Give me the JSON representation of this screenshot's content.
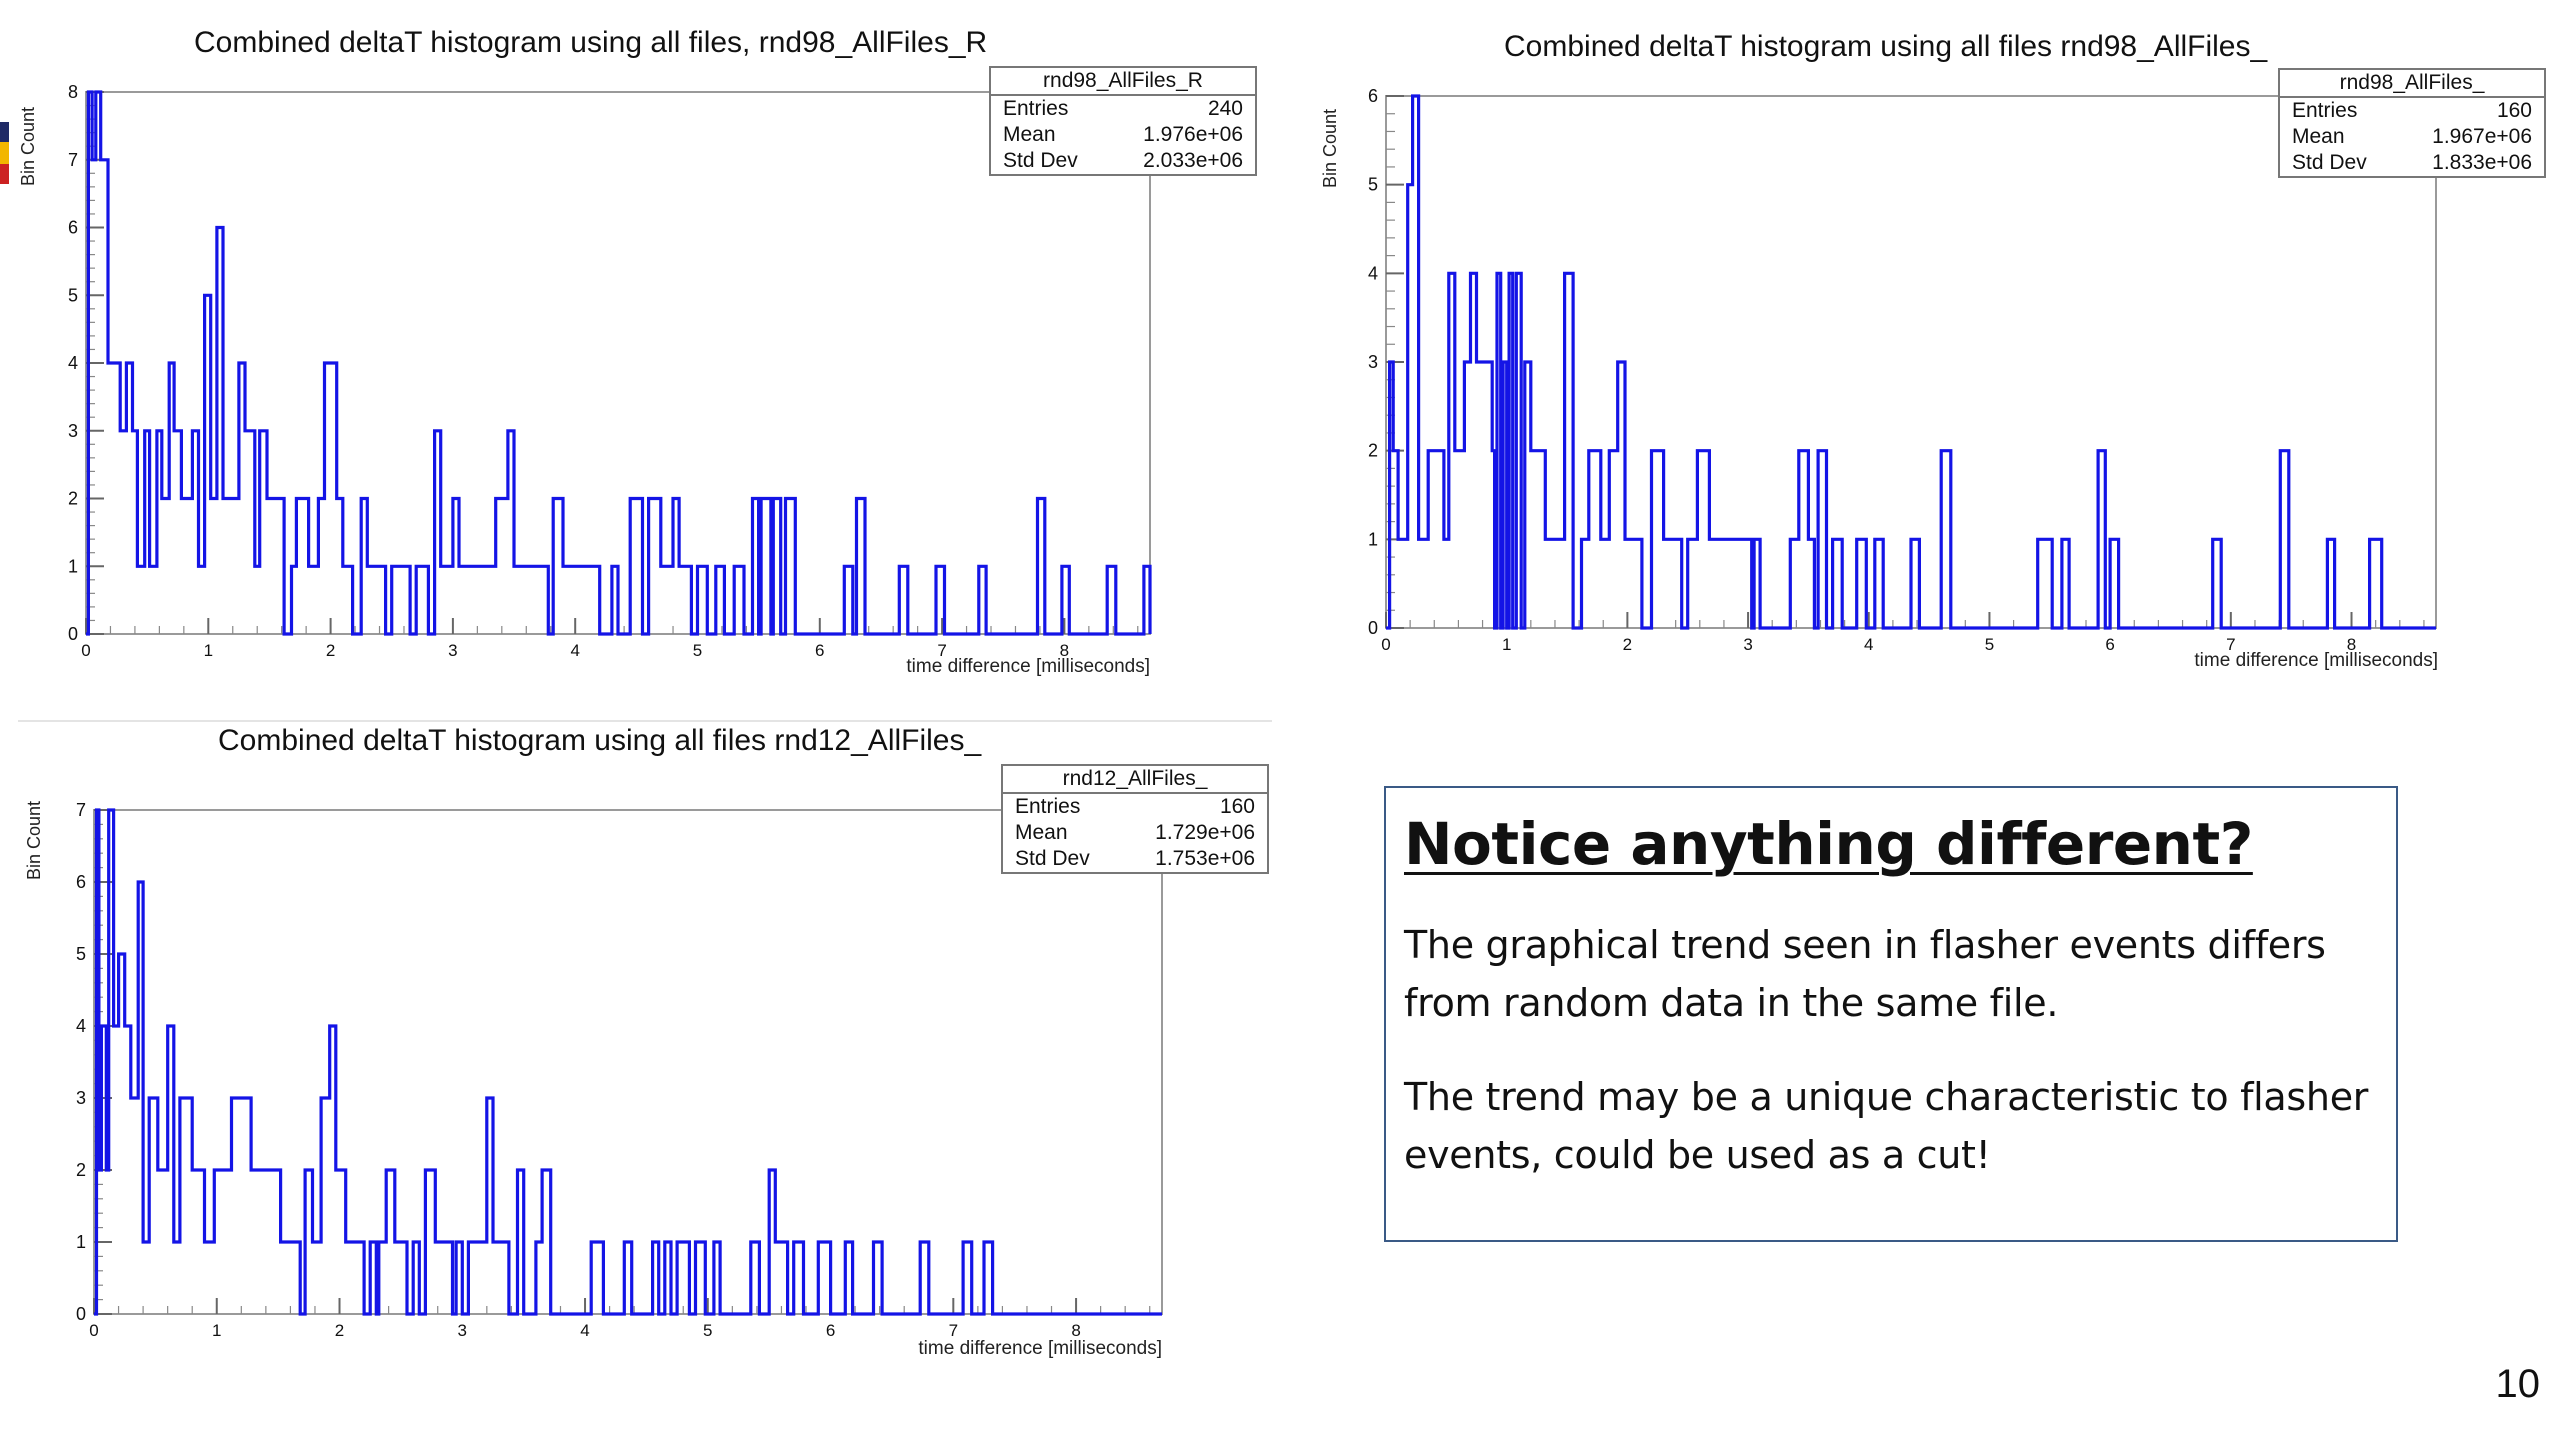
{
  "slide": {
    "page_number": "10"
  },
  "note": {
    "heading": "Notice anything different?",
    "paragraph1": "The graphical trend seen in flasher events differs from random data in the same file.",
    "paragraph2": "The trend may be a unique characteristic to flasher events, could be used as a cut!"
  },
  "colors": {
    "histogram": "#1414e6",
    "logo_top": "#1f2a66",
    "logo_mid": "#f2b600",
    "logo_bot": "#cc2222"
  },
  "chart_data": [
    {
      "type": "histogram-step",
      "title": "Combined deltaT histogram using all files, rnd98_AllFiles_R",
      "xlabel": "time difference [milliseconds]",
      "ylabel": "Bin Count",
      "xlim": [
        0,
        8.7
      ],
      "ylim": [
        0,
        8
      ],
      "x_ticks": [
        0,
        1,
        2,
        3,
        4,
        5,
        6,
        7,
        8
      ],
      "y_ticks": [
        0,
        1,
        2,
        3,
        4,
        5,
        6,
        7,
        8
      ],
      "stats": {
        "name": "rnd98_AllFiles_R",
        "Entries": "240",
        "Mean": "1.976e+06",
        "Std Dev": "2.033e+06"
      },
      "points": [
        [
          0,
          0
        ],
        [
          0.02,
          8
        ],
        [
          0.05,
          7
        ],
        [
          0.08,
          8
        ],
        [
          0.12,
          7
        ],
        [
          0.18,
          4
        ],
        [
          0.28,
          3
        ],
        [
          0.33,
          4
        ],
        [
          0.38,
          3
        ],
        [
          0.42,
          1
        ],
        [
          0.48,
          3
        ],
        [
          0.52,
          1
        ],
        [
          0.58,
          3
        ],
        [
          0.62,
          2
        ],
        [
          0.68,
          4
        ],
        [
          0.72,
          3
        ],
        [
          0.78,
          2
        ],
        [
          0.82,
          2
        ],
        [
          0.87,
          3
        ],
        [
          0.92,
          1
        ],
        [
          0.97,
          5
        ],
        [
          1.02,
          2
        ],
        [
          1.07,
          6
        ],
        [
          1.12,
          2
        ],
        [
          1.2,
          2
        ],
        [
          1.25,
          4
        ],
        [
          1.3,
          3
        ],
        [
          1.38,
          1
        ],
        [
          1.42,
          3
        ],
        [
          1.48,
          2
        ],
        [
          1.58,
          2
        ],
        [
          1.62,
          0
        ],
        [
          1.68,
          1
        ],
        [
          1.72,
          2
        ],
        [
          1.82,
          1
        ],
        [
          1.9,
          2
        ],
        [
          1.95,
          4
        ],
        [
          2.05,
          2
        ],
        [
          2.1,
          1
        ],
        [
          2.18,
          0
        ],
        [
          2.25,
          2
        ],
        [
          2.3,
          1
        ],
        [
          2.4,
          1
        ],
        [
          2.45,
          0
        ],
        [
          2.5,
          1
        ],
        [
          2.6,
          1
        ],
        [
          2.65,
          0
        ],
        [
          2.7,
          1
        ],
        [
          2.8,
          0
        ],
        [
          2.85,
          3
        ],
        [
          2.9,
          1
        ],
        [
          3.0,
          2
        ],
        [
          3.05,
          1
        ],
        [
          3.15,
          1
        ],
        [
          3.2,
          1
        ],
        [
          3.35,
          2
        ],
        [
          3.45,
          3
        ],
        [
          3.5,
          1
        ],
        [
          3.6,
          1
        ],
        [
          3.7,
          1
        ],
        [
          3.78,
          0
        ],
        [
          3.82,
          2
        ],
        [
          3.9,
          1
        ],
        [
          4.0,
          1
        ],
        [
          4.1,
          1
        ],
        [
          4.2,
          0
        ],
        [
          4.3,
          1
        ],
        [
          4.35,
          0
        ],
        [
          4.45,
          2
        ],
        [
          4.55,
          0
        ],
        [
          4.6,
          2
        ],
        [
          4.7,
          1
        ],
        [
          4.8,
          2
        ],
        [
          4.85,
          1
        ],
        [
          4.95,
          0
        ],
        [
          5.0,
          1
        ],
        [
          5.08,
          0
        ],
        [
          5.15,
          1
        ],
        [
          5.22,
          0
        ],
        [
          5.3,
          1
        ],
        [
          5.38,
          0
        ],
        [
          5.45,
          2
        ],
        [
          5.5,
          0
        ],
        [
          5.52,
          2
        ],
        [
          5.6,
          0
        ],
        [
          5.62,
          2
        ],
        [
          5.68,
          0
        ],
        [
          5.72,
          2
        ],
        [
          5.8,
          0
        ],
        [
          6.2,
          1
        ],
        [
          6.27,
          0
        ],
        [
          6.3,
          2
        ],
        [
          6.37,
          0
        ],
        [
          6.65,
          1
        ],
        [
          6.72,
          0
        ],
        [
          6.95,
          1
        ],
        [
          7.02,
          0
        ],
        [
          7.3,
          1
        ],
        [
          7.36,
          0
        ],
        [
          7.78,
          2
        ],
        [
          7.84,
          0
        ],
        [
          7.98,
          1
        ],
        [
          8.04,
          0
        ],
        [
          8.35,
          1
        ],
        [
          8.42,
          0
        ],
        [
          8.65,
          1
        ],
        [
          8.7,
          0
        ]
      ]
    },
    {
      "type": "histogram-step",
      "title": "Combined deltaT histogram using all files rnd98_AllFiles_",
      "xlabel": "time difference [milliseconds]",
      "ylabel": "Bin Count",
      "xlim": [
        0,
        8.7
      ],
      "ylim": [
        0,
        6
      ],
      "x_ticks": [
        0,
        1,
        2,
        3,
        4,
        5,
        6,
        7,
        8
      ],
      "y_ticks": [
        0,
        1,
        2,
        3,
        4,
        5,
        6
      ],
      "stats": {
        "name": "rnd98_AllFiles_",
        "Entries": "160",
        "Mean": "1.967e+06",
        "Std Dev": "1.833e+06"
      },
      "points": [
        [
          0,
          0
        ],
        [
          0.03,
          3
        ],
        [
          0.06,
          2
        ],
        [
          0.1,
          1
        ],
        [
          0.18,
          5
        ],
        [
          0.22,
          6
        ],
        [
          0.27,
          1
        ],
        [
          0.35,
          2
        ],
        [
          0.48,
          1
        ],
        [
          0.52,
          4
        ],
        [
          0.57,
          2
        ],
        [
          0.65,
          3
        ],
        [
          0.7,
          4
        ],
        [
          0.75,
          3
        ],
        [
          0.82,
          3
        ],
        [
          0.88,
          2
        ],
        [
          0.9,
          0
        ],
        [
          0.92,
          4
        ],
        [
          0.95,
          0
        ],
        [
          0.97,
          3
        ],
        [
          1.0,
          0
        ],
        [
          1.02,
          4
        ],
        [
          1.05,
          0
        ],
        [
          1.08,
          4
        ],
        [
          1.12,
          0
        ],
        [
          1.15,
          3
        ],
        [
          1.2,
          2
        ],
        [
          1.32,
          1
        ],
        [
          1.48,
          4
        ],
        [
          1.55,
          0
        ],
        [
          1.62,
          1
        ],
        [
          1.68,
          2
        ],
        [
          1.78,
          1
        ],
        [
          1.85,
          2
        ],
        [
          1.92,
          3
        ],
        [
          1.98,
          1
        ],
        [
          2.05,
          1
        ],
        [
          2.12,
          0
        ],
        [
          2.2,
          2
        ],
        [
          2.3,
          1
        ],
        [
          2.38,
          1
        ],
        [
          2.45,
          0
        ],
        [
          2.5,
          1
        ],
        [
          2.58,
          2
        ],
        [
          2.68,
          1
        ],
        [
          2.78,
          1
        ],
        [
          2.88,
          1
        ],
        [
          3.03,
          0
        ],
        [
          3.05,
          1
        ],
        [
          3.1,
          0
        ],
        [
          3.35,
          1
        ],
        [
          3.42,
          2
        ],
        [
          3.5,
          1
        ],
        [
          3.55,
          0
        ],
        [
          3.58,
          2
        ],
        [
          3.65,
          0
        ],
        [
          3.7,
          1
        ],
        [
          3.78,
          0
        ],
        [
          3.9,
          1
        ],
        [
          3.98,
          0
        ],
        [
          4.05,
          1
        ],
        [
          4.12,
          0
        ],
        [
          4.35,
          1
        ],
        [
          4.42,
          0
        ],
        [
          4.6,
          2
        ],
        [
          4.68,
          0
        ],
        [
          5.1,
          0
        ],
        [
          5.4,
          1
        ],
        [
          5.52,
          0
        ],
        [
          5.6,
          1
        ],
        [
          5.66,
          0
        ],
        [
          5.9,
          2
        ],
        [
          5.96,
          0
        ],
        [
          6.0,
          1
        ],
        [
          6.07,
          0
        ],
        [
          6.5,
          0
        ],
        [
          6.85,
          1
        ],
        [
          6.92,
          0
        ],
        [
          7.1,
          0
        ],
        [
          7.3,
          0
        ],
        [
          7.41,
          2
        ],
        [
          7.48,
          0
        ],
        [
          7.8,
          1
        ],
        [
          7.86,
          0
        ],
        [
          8.15,
          1
        ],
        [
          8.25,
          0
        ],
        [
          8.7,
          0
        ]
      ]
    },
    {
      "type": "histogram-step",
      "title": "Combined deltaT histogram using all files rnd12_AllFiles_",
      "xlabel": "time difference [milliseconds]",
      "ylabel": "Bin Count",
      "xlim": [
        0,
        8.7
      ],
      "ylim": [
        0,
        7
      ],
      "x_ticks": [
        0,
        1,
        2,
        3,
        4,
        5,
        6,
        7,
        8
      ],
      "y_ticks": [
        0,
        1,
        2,
        3,
        4,
        5,
        6,
        7
      ],
      "stats": {
        "name": "rnd12_AllFiles_",
        "Entries": "160",
        "Mean": "1.729e+06",
        "Std Dev": "1.753e+06"
      },
      "points": [
        [
          0,
          0
        ],
        [
          0.02,
          7
        ],
        [
          0.04,
          2
        ],
        [
          0.06,
          4
        ],
        [
          0.1,
          2
        ],
        [
          0.12,
          7
        ],
        [
          0.16,
          4
        ],
        [
          0.2,
          5
        ],
        [
          0.25,
          4
        ],
        [
          0.3,
          3
        ],
        [
          0.36,
          6
        ],
        [
          0.4,
          1
        ],
        [
          0.45,
          3
        ],
        [
          0.52,
          2
        ],
        [
          0.6,
          4
        ],
        [
          0.65,
          1
        ],
        [
          0.7,
          3
        ],
        [
          0.8,
          2
        ],
        [
          0.9,
          1
        ],
        [
          0.98,
          2
        ],
        [
          1.05,
          2
        ],
        [
          1.12,
          3
        ],
        [
          1.2,
          3
        ],
        [
          1.28,
          2
        ],
        [
          1.4,
          2
        ],
        [
          1.52,
          1
        ],
        [
          1.6,
          1
        ],
        [
          1.68,
          0
        ],
        [
          1.72,
          2
        ],
        [
          1.78,
          1
        ],
        [
          1.85,
          3
        ],
        [
          1.92,
          4
        ],
        [
          1.97,
          2
        ],
        [
          2.05,
          1
        ],
        [
          2.12,
          1
        ],
        [
          2.2,
          0
        ],
        [
          2.25,
          1
        ],
        [
          2.3,
          0
        ],
        [
          2.32,
          1
        ],
        [
          2.38,
          2
        ],
        [
          2.45,
          1
        ],
        [
          2.5,
          1
        ],
        [
          2.55,
          0
        ],
        [
          2.6,
          1
        ],
        [
          2.65,
          0
        ],
        [
          2.7,
          2
        ],
        [
          2.78,
          1
        ],
        [
          2.85,
          1
        ],
        [
          2.92,
          0
        ],
        [
          2.95,
          1
        ],
        [
          3.0,
          0
        ],
        [
          3.05,
          1
        ],
        [
          3.1,
          1
        ],
        [
          3.2,
          3
        ],
        [
          3.25,
          1
        ],
        [
          3.3,
          1
        ],
        [
          3.38,
          0
        ],
        [
          3.45,
          2
        ],
        [
          3.5,
          0
        ],
        [
          3.6,
          1
        ],
        [
          3.65,
          2
        ],
        [
          3.72,
          0
        ],
        [
          4.05,
          1
        ],
        [
          4.15,
          0
        ],
        [
          4.32,
          1
        ],
        [
          4.38,
          0
        ],
        [
          4.55,
          1
        ],
        [
          4.6,
          0
        ],
        [
          4.65,
          1
        ],
        [
          4.7,
          0
        ],
        [
          4.75,
          1
        ],
        [
          4.85,
          0
        ],
        [
          4.9,
          1
        ],
        [
          4.98,
          0
        ],
        [
          5.05,
          1
        ],
        [
          5.1,
          0
        ],
        [
          5.35,
          1
        ],
        [
          5.42,
          0
        ],
        [
          5.5,
          2
        ],
        [
          5.55,
          1
        ],
        [
          5.6,
          1
        ],
        [
          5.65,
          0
        ],
        [
          5.7,
          1
        ],
        [
          5.78,
          0
        ],
        [
          5.9,
          1
        ],
        [
          6.0,
          0
        ],
        [
          6.12,
          1
        ],
        [
          6.18,
          0
        ],
        [
          6.35,
          1
        ],
        [
          6.42,
          0
        ],
        [
          6.73,
          1
        ],
        [
          6.8,
          0
        ],
        [
          7.08,
          1
        ],
        [
          7.15,
          0
        ],
        [
          7.25,
          1
        ],
        [
          7.32,
          0
        ],
        [
          8.7,
          0
        ]
      ]
    }
  ]
}
